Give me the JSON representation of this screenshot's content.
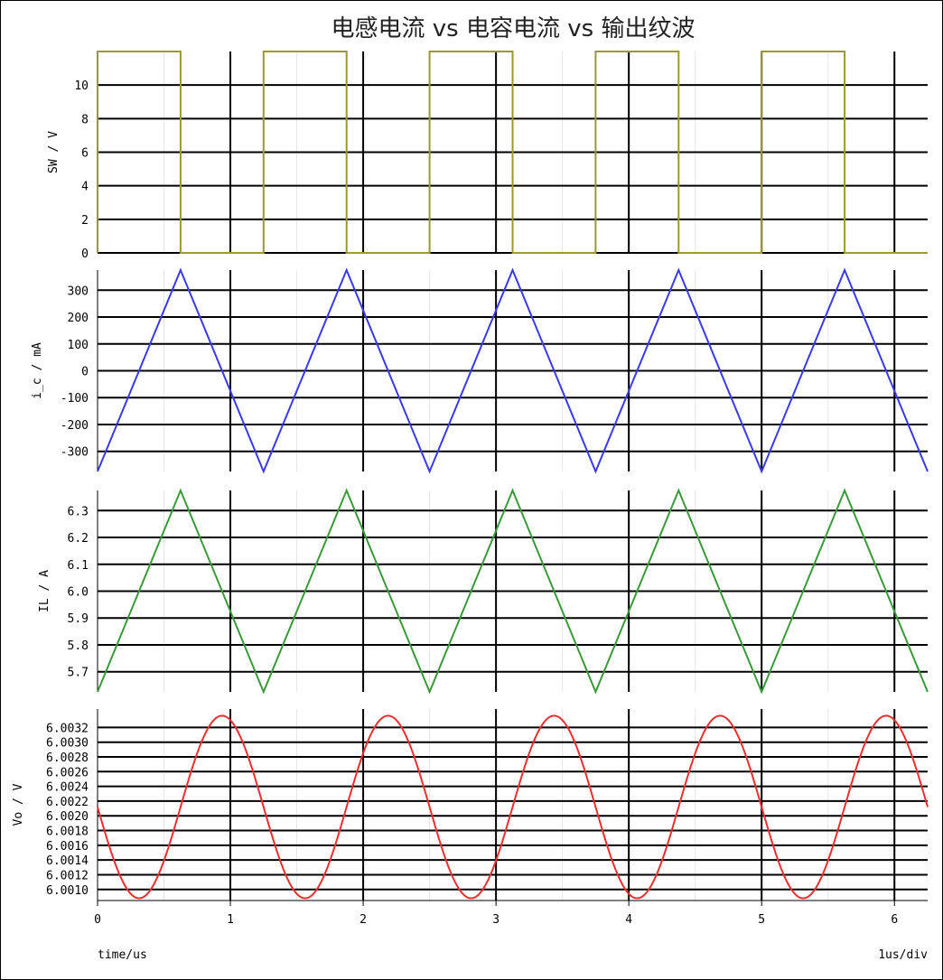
{
  "title": "电感电流 vs 电容电流 vs 输出纹波",
  "footer": {
    "left": "time/us",
    "right": "1us/div"
  },
  "chart_data": [
    {
      "type": "line",
      "name": "sw",
      "ylabel": "SW / V",
      "color": "#9a9a2e",
      "xlim": [
        0,
        6.25
      ],
      "ylim": [
        0,
        12
      ],
      "yticks": [
        0,
        2,
        4,
        6,
        8,
        10
      ],
      "ytick_labels": [
        "0",
        "2",
        "4",
        "6",
        "8",
        "10"
      ],
      "series": [
        {
          "x": [
            0,
            0,
            0.625,
            0.625,
            1.25,
            1.25,
            1.875,
            1.875,
            2.5,
            2.5,
            3.125,
            3.125,
            3.75,
            3.75,
            4.375,
            4.375,
            5.0,
            5.0,
            5.625,
            5.625,
            6.25
          ],
          "y": [
            0,
            12,
            12,
            0,
            0,
            12,
            12,
            0,
            0,
            12,
            12,
            0,
            0,
            12,
            12,
            0,
            0,
            12,
            12,
            0,
            0
          ]
        }
      ]
    },
    {
      "type": "line",
      "name": "ic",
      "ylabel": "i_c / mA",
      "color": "#3a3ae6",
      "xlim": [
        0,
        6.25
      ],
      "ylim": [
        -375,
        375
      ],
      "yticks": [
        -300,
        -200,
        -100,
        0,
        100,
        200,
        300
      ],
      "ytick_labels": [
        "-300",
        "-200",
        "-100",
        "0",
        "100",
        "200",
        "300"
      ],
      "series": [
        {
          "x": [
            0,
            0.625,
            1.25,
            1.875,
            2.5,
            3.125,
            3.75,
            4.375,
            5.0,
            5.625,
            6.25
          ],
          "y": [
            -375,
            375,
            -375,
            375,
            -375,
            375,
            -375,
            375,
            -375,
            375,
            -375
          ]
        }
      ]
    },
    {
      "type": "line",
      "name": "il",
      "ylabel": "IL / A",
      "color": "#3a9a3a",
      "xlim": [
        0,
        6.25
      ],
      "ylim": [
        5.625,
        6.375
      ],
      "yticks": [
        5.7,
        5.8,
        5.9,
        6.0,
        6.1,
        6.2,
        6.3
      ],
      "ytick_labels": [
        "5.7",
        "5.8",
        "5.9",
        "6.0",
        "6.1",
        "6.2",
        "6.3"
      ],
      "series": [
        {
          "x": [
            0,
            0.625,
            1.25,
            1.875,
            2.5,
            3.125,
            3.75,
            4.375,
            5.0,
            5.625,
            6.25
          ],
          "y": [
            5.625,
            6.375,
            5.625,
            6.375,
            5.625,
            6.375,
            5.625,
            6.375,
            5.625,
            6.375,
            5.625
          ]
        }
      ]
    },
    {
      "type": "line",
      "name": "vo",
      "ylabel": "Vo / V",
      "color": "#e83030",
      "xlim": [
        0,
        6.25
      ],
      "ylim": [
        6.00085,
        6.00345
      ],
      "yticks": [
        6.001,
        6.0012,
        6.0014,
        6.0016,
        6.0018,
        6.002,
        6.0022,
        6.0024,
        6.0026,
        6.0028,
        6.003,
        6.0032
      ],
      "ytick_labels": [
        "6.0010",
        "6.0012",
        "6.0014",
        "6.0016",
        "6.0018",
        "6.0020",
        "6.0022",
        "6.0024",
        "6.0026",
        "6.0028",
        "6.0030",
        "6.0032"
      ],
      "waveform": {
        "kind": "sine",
        "center": 6.00212,
        "amplitude": 0.00124,
        "period_us": 1.25,
        "min_at_us": 0.3125
      },
      "xticks": [
        0,
        1,
        2,
        3,
        4,
        5,
        6
      ],
      "xtick_labels": [
        "0",
        "1",
        "2",
        "3",
        "4",
        "5",
        "6"
      ]
    }
  ]
}
